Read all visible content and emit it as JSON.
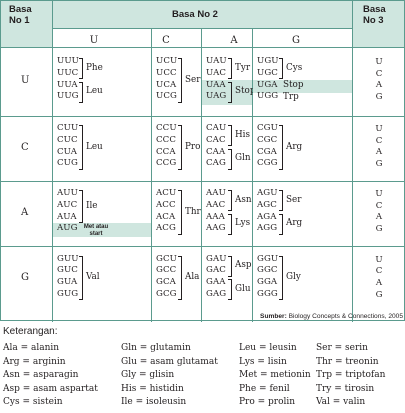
{
  "header": {
    "basa1": "Basa\nNo 1",
    "basa2": "Basa No 2",
    "basa3": "Basa\nNo 3",
    "second_bases": [
      "U",
      "C",
      "A",
      "G"
    ]
  },
  "rows": [
    {
      "first": "U",
      "third": [
        "U",
        "C",
        "A",
        "G"
      ],
      "cells": [
        {
          "codons": [
            "UUU",
            "UUC",
            "UUA",
            "UUG"
          ],
          "groups": [
            {
              "aa": "Phe",
              "span": [
                0,
                1
              ]
            },
            {
              "aa": "Leu",
              "span": [
                2,
                3
              ]
            }
          ]
        },
        {
          "codons": [
            "UCU",
            "UCC",
            "UCA",
            "UCG"
          ],
          "groups": [
            {
              "aa": "Ser",
              "span": [
                0,
                3
              ]
            }
          ]
        },
        {
          "codons": [
            "UAU",
            "UAC",
            "UAA",
            "UAG"
          ],
          "groups": [
            {
              "aa": "Tyr",
              "span": [
                0,
                1
              ]
            },
            {
              "aa": "Stop",
              "span": [
                2,
                3
              ],
              "shaded": true
            }
          ]
        },
        {
          "codons": [
            "UGU",
            "UGC",
            "UGA",
            "UGG"
          ],
          "groups": [
            {
              "aa": "Cys",
              "span": [
                0,
                1
              ]
            },
            {
              "aa": "Stop",
              "span": [
                2,
                2
              ],
              "shaded": true
            },
            {
              "aa": "Trp",
              "span": [
                3,
                3
              ]
            }
          ]
        }
      ]
    },
    {
      "first": "C",
      "third": [
        "U",
        "C",
        "A",
        "G"
      ],
      "cells": [
        {
          "codons": [
            "CUU",
            "CUC",
            "CUA",
            "CUG"
          ],
          "groups": [
            {
              "aa": "Leu",
              "span": [
                0,
                3
              ]
            }
          ]
        },
        {
          "codons": [
            "CCU",
            "CCC",
            "CCA",
            "CCG"
          ],
          "groups": [
            {
              "aa": "Pro",
              "span": [
                0,
                3
              ]
            }
          ]
        },
        {
          "codons": [
            "CAU",
            "CAC",
            "CAA",
            "CAG"
          ],
          "groups": [
            {
              "aa": "His",
              "span": [
                0,
                1
              ]
            },
            {
              "aa": "Gln",
              "span": [
                2,
                3
              ]
            }
          ]
        },
        {
          "codons": [
            "CGU",
            "CGC",
            "CGA",
            "CGG"
          ],
          "groups": [
            {
              "aa": "Arg",
              "span": [
                0,
                3
              ]
            }
          ]
        }
      ]
    },
    {
      "first": "A",
      "third": [
        "U",
        "C",
        "A",
        "G"
      ],
      "cells": [
        {
          "codons": [
            "AUU",
            "AUC",
            "AUA",
            "AUG"
          ],
          "groups": [
            {
              "aa": "Ile",
              "span": [
                0,
                2
              ]
            },
            {
              "aa": "Met atau start",
              "span": [
                3,
                3
              ],
              "shaded": true,
              "small": true
            }
          ]
        },
        {
          "codons": [
            "ACU",
            "ACC",
            "ACA",
            "ACG"
          ],
          "groups": [
            {
              "aa": "Thr",
              "span": [
                0,
                3
              ]
            }
          ]
        },
        {
          "codons": [
            "AAU",
            "AAC",
            "AAA",
            "AAG"
          ],
          "groups": [
            {
              "aa": "Asn",
              "span": [
                0,
                1
              ]
            },
            {
              "aa": "Lys",
              "span": [
                2,
                3
              ]
            }
          ]
        },
        {
          "codons": [
            "AGU",
            "AGC",
            "AGA",
            "AGG"
          ],
          "groups": [
            {
              "aa": "Ser",
              "span": [
                0,
                1
              ]
            },
            {
              "aa": "Arg",
              "span": [
                2,
                3
              ]
            }
          ]
        }
      ]
    },
    {
      "first": "G",
      "third": [
        "U",
        "C",
        "A",
        "G"
      ],
      "cells": [
        {
          "codons": [
            "GUU",
            "GUC",
            "GUA",
            "GUG"
          ],
          "groups": [
            {
              "aa": "Val",
              "span": [
                0,
                3
              ]
            }
          ]
        },
        {
          "codons": [
            "GCU",
            "GCC",
            "GCA",
            "GCG"
          ],
          "groups": [
            {
              "aa": "Ala",
              "span": [
                0,
                3
              ]
            }
          ]
        },
        {
          "codons": [
            "GAU",
            "GAC",
            "GAA",
            "GAG"
          ],
          "groups": [
            {
              "aa": "Asp",
              "span": [
                0,
                1
              ]
            },
            {
              "aa": "Glu",
              "span": [
                2,
                3
              ]
            }
          ]
        },
        {
          "codons": [
            "GGU",
            "GGC",
            "GGA",
            "GGG"
          ],
          "groups": [
            {
              "aa": "Gly",
              "span": [
                0,
                3
              ]
            }
          ]
        }
      ]
    }
  ],
  "source": {
    "label": "Sumber:",
    "text": " Biology Concepts & Connections, 2005"
  },
  "keterangan": {
    "title": "Keterangan:",
    "columns": [
      [
        "Ala = alanin",
        "Arg = arginin",
        "Asn = asparagin",
        "Asp = asam aspartat",
        "Cys = sistein"
      ],
      [
        "Gln = glutamin",
        "Glu = asam glutamat",
        "Gly = glisin",
        "His = histidin",
        "Ile  = isoleusin"
      ],
      [
        "Leu = leusin",
        "Lys = lisin",
        "Met = metionin",
        "Phe = fenil",
        "Pro = prolin"
      ],
      [
        "Ser = serin",
        "Thr = treonin",
        "Trp = triptofan",
        "Try = tirosin",
        "Val = valin"
      ]
    ]
  },
  "colors": {
    "border": "#5b9b8e",
    "shade": "#cfe6df",
    "text": "#231f20"
  }
}
